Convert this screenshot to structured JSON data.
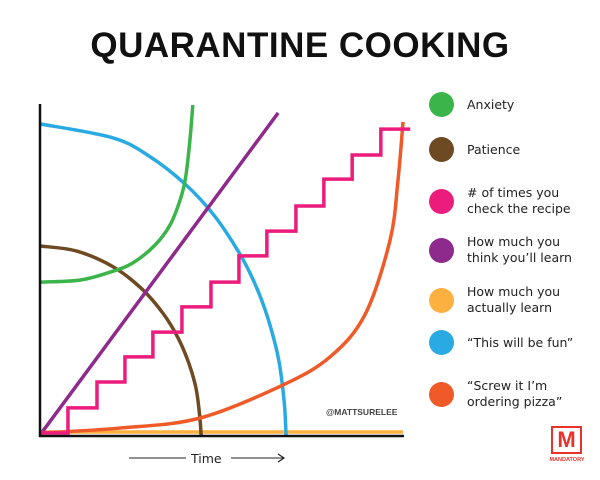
{
  "chart_data": {
    "type": "line",
    "title": "QUARANTINE COOKING",
    "xlabel": "Time",
    "ylabel": "",
    "xlim": [
      0,
      100
    ],
    "ylim": [
      0,
      100
    ],
    "grid": false,
    "legend": "right",
    "annotation": "@MATTSURELEE",
    "series": [
      {
        "name": "Anxiety",
        "color": "#3bb44a",
        "shape": "curve",
        "points": [
          [
            0,
            46.5
          ],
          [
            11,
            47.1
          ],
          [
            19.3,
            49.5
          ],
          [
            25.6,
            52.3
          ],
          [
            31.7,
            57.7
          ],
          [
            35.8,
            63.7
          ],
          [
            38.6,
            71.3
          ],
          [
            40.1,
            78
          ],
          [
            41.3,
            89.4
          ],
          [
            42.1,
            100
          ]
        ]
      },
      {
        "name": "Patience",
        "color": "#6e4a22",
        "shape": "curve",
        "points": [
          [
            0,
            57.4
          ],
          [
            10,
            55.9
          ],
          [
            20,
            51.2
          ],
          [
            28,
            44.5
          ],
          [
            34,
            36.9
          ],
          [
            38,
            29.7
          ],
          [
            41,
            22
          ],
          [
            43,
            14.3
          ],
          [
            44,
            6
          ],
          [
            44.4,
            0
          ]
        ]
      },
      {
        "name": "# of times you\ncheck the recipe",
        "color": "#ec1c7d",
        "shape": "step",
        "points": [
          [
            0,
            0.9
          ],
          [
            7.7,
            0.9
          ],
          [
            7.7,
            8.5
          ],
          [
            15.7,
            8.5
          ],
          [
            15.7,
            16.3
          ],
          [
            23.4,
            16.3
          ],
          [
            23.4,
            23.9
          ],
          [
            31.1,
            23.9
          ],
          [
            31.1,
            31.4
          ],
          [
            39.1,
            31.4
          ],
          [
            39.1,
            39
          ],
          [
            47.1,
            39
          ],
          [
            47.1,
            46.5
          ],
          [
            54.8,
            46.5
          ],
          [
            54.8,
            54.4
          ],
          [
            62.5,
            54.4
          ],
          [
            62.5,
            61.9
          ],
          [
            70.5,
            61.9
          ],
          [
            70.5,
            69.5
          ],
          [
            78.2,
            69.5
          ],
          [
            78.2,
            77.6
          ],
          [
            86,
            77.6
          ],
          [
            86,
            84.9
          ],
          [
            93.9,
            84.9
          ],
          [
            93.9,
            92.7
          ],
          [
            102,
            92.7
          ]
        ]
      },
      {
        "name": "How much you\nthink you’ll learn",
        "color": "#8e2a8c",
        "shape": "line",
        "points": [
          [
            0.6,
            1.2
          ],
          [
            65.6,
            97.6
          ]
        ]
      },
      {
        "name": "How much you\nactually learn",
        "color": "#fbb040",
        "shape": "line",
        "points": [
          [
            0,
            1.2
          ],
          [
            100,
            1.2
          ]
        ]
      },
      {
        "name": "“This will be fun”",
        "color": "#2aaae2",
        "shape": "curve",
        "points": [
          [
            0,
            94.3
          ],
          [
            20,
            90.1
          ],
          [
            30,
            84.6
          ],
          [
            40,
            76.1
          ],
          [
            48,
            66.6
          ],
          [
            55,
            55.1
          ],
          [
            59,
            46.5
          ],
          [
            62,
            38.2
          ],
          [
            64.5,
            29
          ],
          [
            66,
            21.5
          ],
          [
            67.3,
            10
          ],
          [
            67.8,
            0
          ]
        ]
      },
      {
        "name": "“Screw it I’m\nordering pizza”",
        "color": "#f05a28",
        "shape": "curve",
        "points": [
          [
            0,
            0.9
          ],
          [
            22,
            2.4
          ],
          [
            44,
            5.4
          ],
          [
            66.9,
            15.4
          ],
          [
            80,
            24
          ],
          [
            89.5,
            36.6
          ],
          [
            96.4,
            59
          ],
          [
            98.6,
            77
          ],
          [
            100,
            94.9
          ]
        ]
      }
    ]
  },
  "branding": {
    "logo_letter": "M",
    "logo_word": "MANDATORY"
  }
}
